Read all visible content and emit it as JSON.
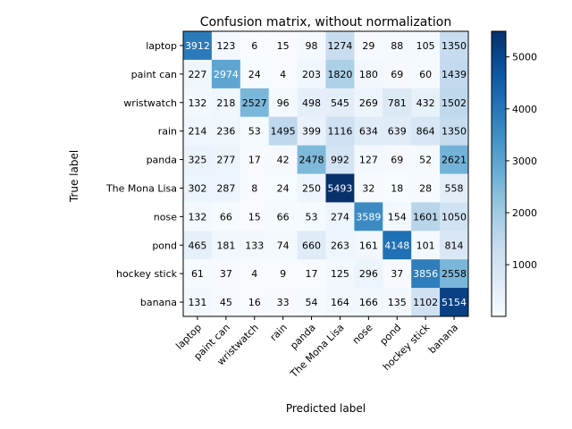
{
  "chart_data": {
    "type": "heatmap",
    "title": "Confusion matrix, without normalization",
    "xlabel": "Predicted label",
    "ylabel": "True label",
    "x_categories": [
      "laptop",
      "paint can",
      "wristwatch",
      "rain",
      "panda",
      "The Mona Lisa",
      "nose",
      "pond",
      "hockey stick",
      "banana"
    ],
    "y_categories": [
      "laptop",
      "paint can",
      "wristwatch",
      "rain",
      "panda",
      "The Mona Lisa",
      "nose",
      "pond",
      "hockey stick",
      "banana"
    ],
    "matrix": [
      [
        3912,
        123,
        6,
        15,
        98,
        1274,
        29,
        88,
        105,
        1350
      ],
      [
        227,
        2974,
        24,
        4,
        203,
        1820,
        180,
        69,
        60,
        1439
      ],
      [
        132,
        218,
        2527,
        96,
        498,
        545,
        269,
        781,
        432,
        1502
      ],
      [
        214,
        236,
        53,
        1495,
        399,
        1116,
        634,
        639,
        864,
        1350
      ],
      [
        325,
        277,
        17,
        42,
        2478,
        992,
        127,
        69,
        52,
        2621
      ],
      [
        302,
        287,
        8,
        24,
        250,
        5493,
        32,
        18,
        28,
        558
      ],
      [
        132,
        66,
        15,
        66,
        53,
        274,
        3589,
        154,
        1601,
        1050
      ],
      [
        465,
        181,
        133,
        74,
        660,
        263,
        161,
        4148,
        101,
        814
      ],
      [
        61,
        37,
        4,
        9,
        17,
        125,
        296,
        37,
        3856,
        2558
      ],
      [
        131,
        45,
        16,
        33,
        54,
        164,
        166,
        135,
        1102,
        5154
      ]
    ],
    "colormap": "Blues",
    "colorbar": {
      "range": [
        4,
        5493
      ],
      "ticks": [
        1000,
        2000,
        3000,
        4000,
        5000
      ]
    },
    "grid": false
  }
}
